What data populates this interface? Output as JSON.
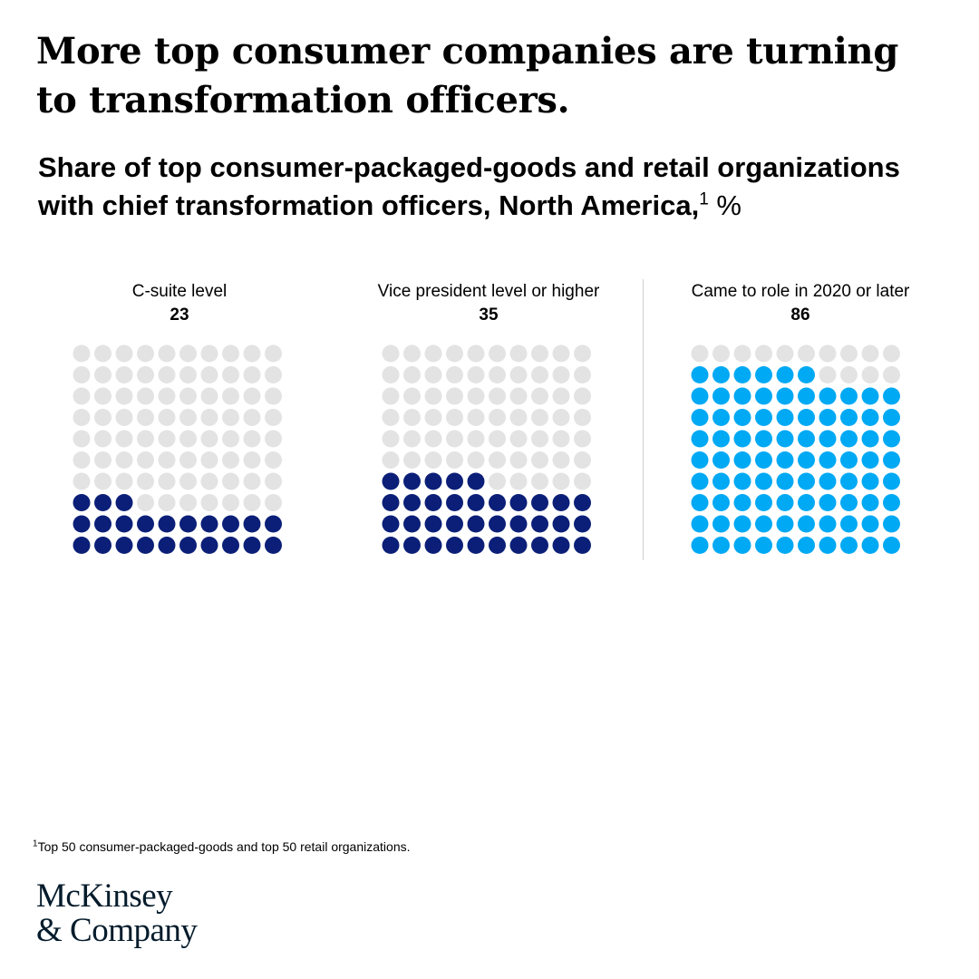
{
  "header": {
    "title": "More top consumer companies are turning to transformation officers.",
    "subtitle": "Share of top consumer-packaged-goods and retail organizations with chief transformation officers, North America,",
    "subtitle_footnote_marker": "1",
    "subtitle_unit": "%"
  },
  "chart_data": {
    "type": "waffle",
    "unit": "%",
    "grid": {
      "rows": 10,
      "cols": 10
    },
    "empty_color": "#e3e3e3",
    "panels": [
      {
        "label": "C-suite level",
        "value": 23,
        "color": "#0b1f78"
      },
      {
        "label": "Vice president level or higher",
        "value": 35,
        "color": "#0b1f78"
      },
      {
        "label": "Came to role in 2020 or later",
        "value": 86,
        "color": "#00a9f4"
      }
    ]
  },
  "footnote": {
    "marker": "1",
    "text": "Top 50 consumer-packaged-goods and top 50 retail organizations."
  },
  "logo": {
    "line1": "McKinsey",
    "line2": "& Company"
  }
}
